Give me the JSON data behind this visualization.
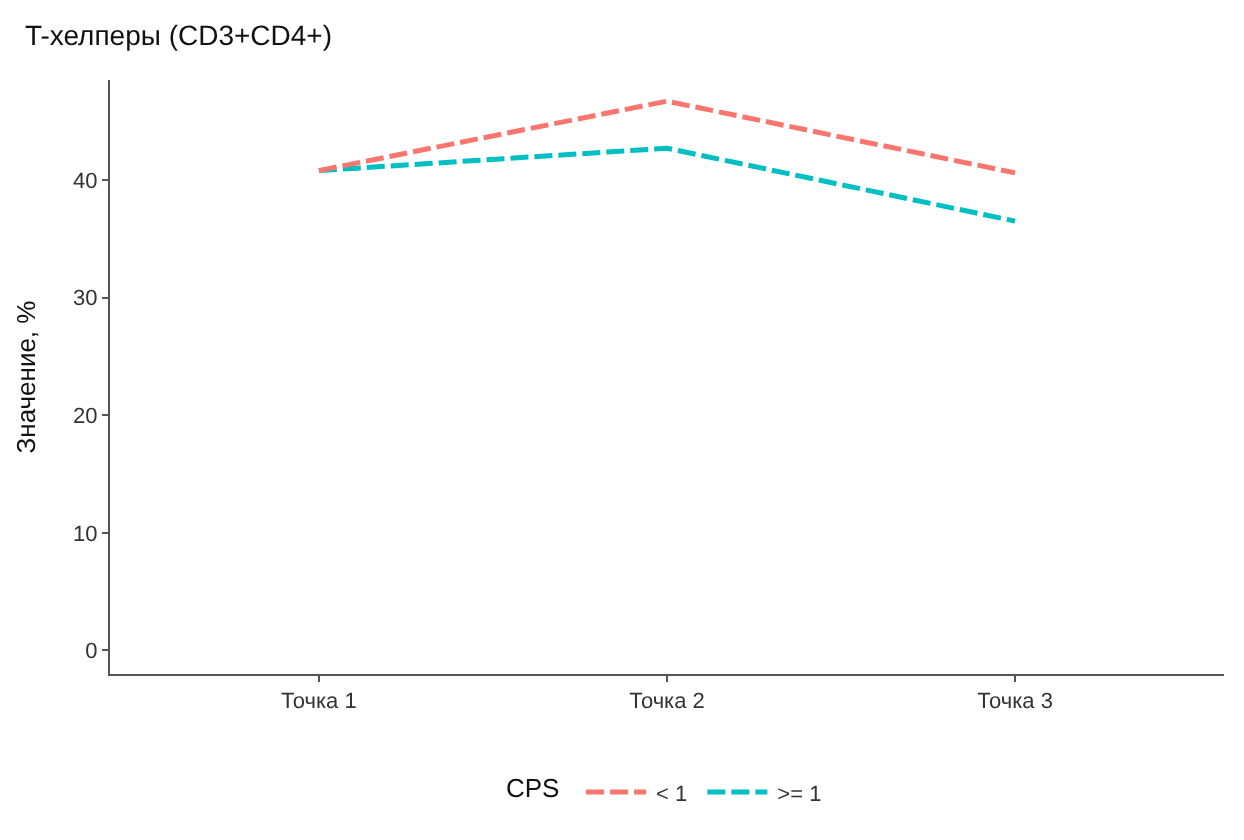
{
  "chart_data": {
    "type": "line",
    "title": "T-хелперы (CD3+CD4+)",
    "ylabel": "Значение, %",
    "legend_title": "CPS",
    "categories": [
      "Точка 1",
      "Точка 2",
      "Точка 3"
    ],
    "series": [
      {
        "name": "< 1",
        "color": "#f8766d",
        "values": [
          40.8,
          46.7,
          40.6
        ]
      },
      {
        "name": ">= 1",
        "color": "#00bfc4",
        "values": [
          40.8,
          42.7,
          36.5
        ]
      }
    ],
    "ylim": [
      -2,
      48.5
    ],
    "yticks": [
      0,
      10,
      20,
      30,
      40
    ],
    "legend": "bottom",
    "line_style": "dashed",
    "marker": "none"
  }
}
